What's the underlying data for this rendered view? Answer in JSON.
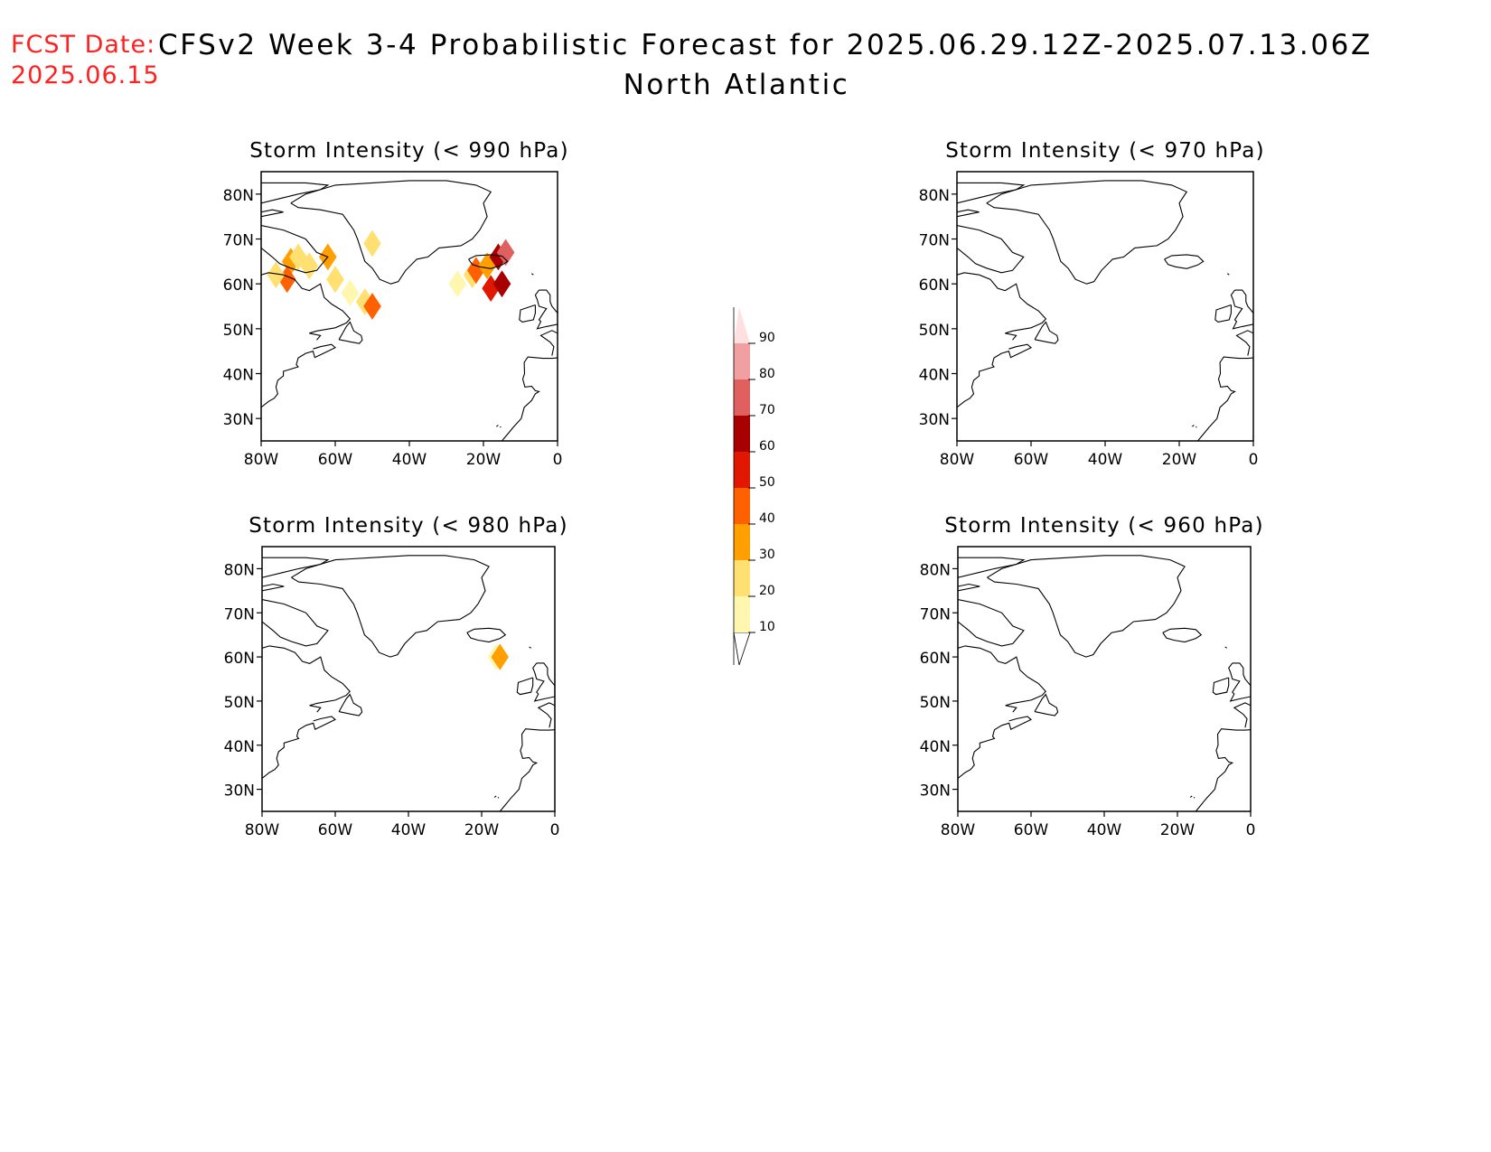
{
  "header": {
    "fcst_label": "FCST Date:",
    "fcst_date": "2025.06.15",
    "title": "CFSv2 Week 3-4 Probabilistic Forecast for 2025.06.29.12Z-2025.07.13.06Z",
    "region": "North Atlantic"
  },
  "axes": {
    "lat_ticks": [
      "80N",
      "70N",
      "60N",
      "50N",
      "40N",
      "30N"
    ],
    "lon_ticks": [
      "80W",
      "60W",
      "40W",
      "20W",
      "0"
    ]
  },
  "panels": [
    {
      "id": "p990",
      "title": "Storm Intensity (< 990 hPa)",
      "position": "top-left"
    },
    {
      "id": "p970",
      "title": "Storm Intensity (< 970 hPa)",
      "position": "top-right"
    },
    {
      "id": "p980",
      "title": "Storm Intensity (< 980 hPa)",
      "position": "bottom-left"
    },
    {
      "id": "p960",
      "title": "Storm Intensity (< 960 hPa)",
      "position": "bottom-right"
    }
  ],
  "colorbar": {
    "labels": [
      "10",
      "20",
      "30",
      "40",
      "50",
      "60",
      "70",
      "80",
      "90"
    ],
    "colors": [
      "#fff7b0",
      "#ffe070",
      "#ffa000",
      "#ff6000",
      "#e01800",
      "#a80000",
      "#e06060",
      "#f0a0a0",
      "#ffe0e0"
    ]
  },
  "chart_data": {
    "type": "heatmap",
    "units": "probability (%)",
    "lon_range": [
      -80,
      0
    ],
    "lat_range": [
      25,
      85
    ],
    "panels": [
      {
        "title": "Storm Intensity (< 990 hPa)",
        "cells": [
          {
            "lon": -72,
            "lat": 65,
            "value": 30
          },
          {
            "lon": -70,
            "lat": 66,
            "value": 20
          },
          {
            "lon": -73,
            "lat": 61,
            "value": 40
          },
          {
            "lon": -76,
            "lat": 62,
            "value": 20
          },
          {
            "lon": -67,
            "lat": 64,
            "value": 20
          },
          {
            "lon": -62,
            "lat": 66,
            "value": 30
          },
          {
            "lon": -60,
            "lat": 61,
            "value": 20
          },
          {
            "lon": -56,
            "lat": 58,
            "value": 10
          },
          {
            "lon": -52,
            "lat": 56,
            "value": 20
          },
          {
            "lon": -50,
            "lat": 55,
            "value": 40
          },
          {
            "lon": -50,
            "lat": 69,
            "value": 20
          },
          {
            "lon": -27,
            "lat": 60,
            "value": 10
          },
          {
            "lon": -23,
            "lat": 62,
            "value": 20
          },
          {
            "lon": -22,
            "lat": 63,
            "value": 40
          },
          {
            "lon": -19,
            "lat": 64,
            "value": 30
          },
          {
            "lon": -16,
            "lat": 66,
            "value": 60
          },
          {
            "lon": -14,
            "lat": 67,
            "value": 70
          },
          {
            "lon": -18,
            "lat": 59,
            "value": 50
          },
          {
            "lon": -15,
            "lat": 60,
            "value": 60
          }
        ]
      },
      {
        "title": "Storm Intensity (< 970 hPa)",
        "cells": []
      },
      {
        "title": "Storm Intensity (< 980 hPa)",
        "cells": [
          {
            "lon": -16,
            "lat": 60,
            "value": 10
          },
          {
            "lon": -15,
            "lat": 60,
            "value": 30
          }
        ]
      },
      {
        "title": "Storm Intensity (< 960 hPa)",
        "cells": []
      }
    ]
  }
}
